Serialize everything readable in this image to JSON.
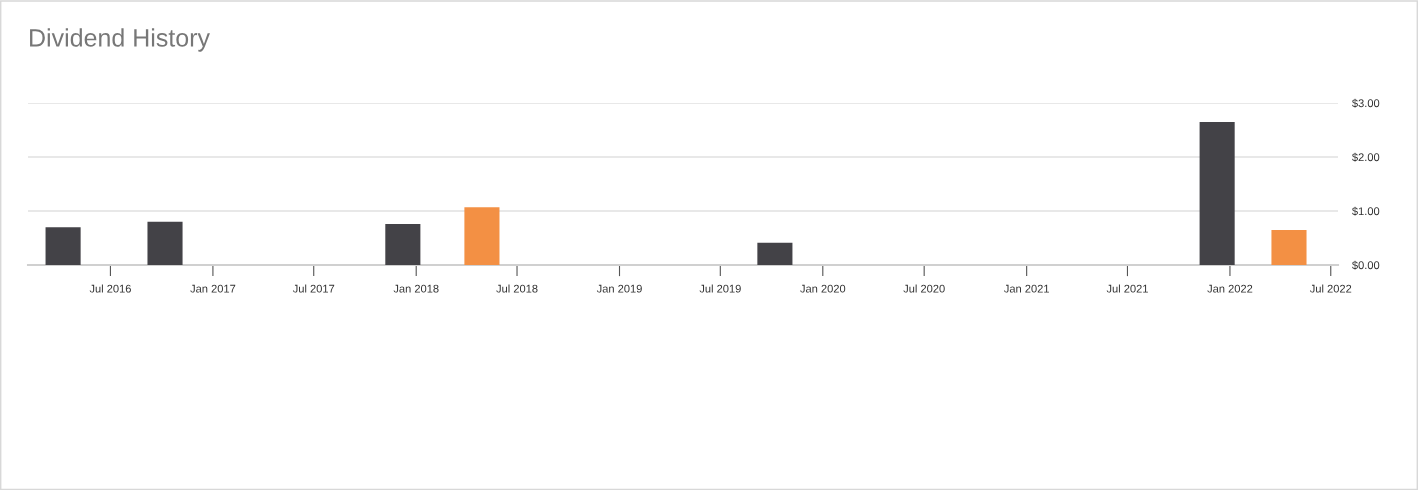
{
  "chart_data": {
    "type": "bar",
    "title": "Dividend History",
    "x": [
      "2016-04-07",
      "2016-10-07",
      "2017-12-08",
      "2018-04-29",
      "2019-10-07",
      "2021-12-09",
      "2022-04-17"
    ],
    "values": [
      0.7,
      0.8,
      0.76,
      1.07,
      0.41,
      2.65,
      0.65
    ],
    "colors": [
      "#434247",
      "#434247",
      "#434247",
      "#f39044",
      "#434247",
      "#434247",
      "#f39044"
    ],
    "xlim": [
      "2016-02-04",
      "2022-07-14"
    ],
    "xticks": [
      {
        "value": "2016-07-01",
        "label": "Jul 2016"
      },
      {
        "value": "2017-01-01",
        "label": "Jan 2017"
      },
      {
        "value": "2017-07-01",
        "label": "Jul 2017"
      },
      {
        "value": "2018-01-01",
        "label": "Jan 2018"
      },
      {
        "value": "2018-07-01",
        "label": "Jul 2018"
      },
      {
        "value": "2019-01-01",
        "label": "Jan 2019"
      },
      {
        "value": "2019-07-01",
        "label": "Jul 2019"
      },
      {
        "value": "2020-01-01",
        "label": "Jan 2020"
      },
      {
        "value": "2020-07-01",
        "label": "Jul 2020"
      },
      {
        "value": "2021-01-01",
        "label": "Jan 2021"
      },
      {
        "value": "2021-07-01",
        "label": "Jul 2021"
      },
      {
        "value": "2022-01-01",
        "label": "Jan 2022"
      },
      {
        "value": "2022-07-01",
        "label": "Jul 2022"
      }
    ],
    "ylim": [
      0,
      3
    ],
    "yticks": [
      {
        "value": 0,
        "label": "$0.00"
      },
      {
        "value": 1,
        "label": "$1.00"
      },
      {
        "value": 2,
        "label": "$2.00"
      },
      {
        "value": 3,
        "label": "$3.00"
      }
    ],
    "grid": "y"
  }
}
